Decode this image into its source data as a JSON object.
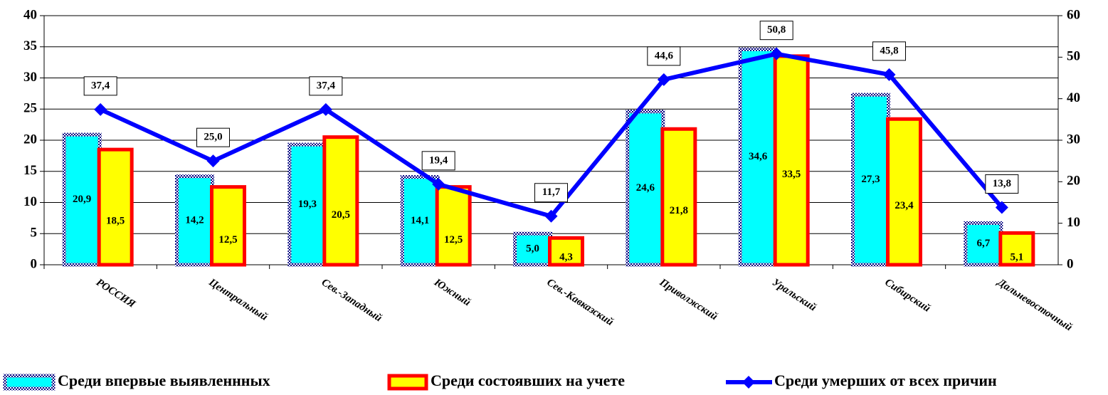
{
  "chart_data": {
    "type": "bar",
    "categories": [
      "РОССИЯ",
      "Центральный",
      "Сев.-Западный",
      "Южный",
      "Сев.-Кавказский",
      "Приволжский",
      "Уральский",
      "Сибирский",
      "Дальневосточный"
    ],
    "series": [
      {
        "name": "Среди впервые выявленнных",
        "color": "#00ffff",
        "type": "bar",
        "values": [
          20.9,
          14.2,
          19.3,
          14.1,
          5.0,
          24.6,
          34.6,
          27.3,
          6.7
        ],
        "value_labels": [
          "20,9",
          "14,2",
          "19,3",
          "14,1",
          "5,0",
          "24,6",
          "34,6",
          "27,3",
          "6,7"
        ]
      },
      {
        "name": "Среди состоявших на учете",
        "color": "#ffff00",
        "type": "bar",
        "values": [
          18.5,
          12.5,
          20.5,
          12.5,
          4.3,
          21.8,
          33.5,
          23.4,
          5.1
        ],
        "value_labels": [
          "18,5",
          "12,5",
          "20,5",
          "12,5",
          "4,3",
          "21,8",
          "33,5",
          "23,4",
          "5,1"
        ]
      },
      {
        "name": "Среди умерших от всех причин",
        "color": "#0000ff",
        "type": "line",
        "axis": "y2",
        "values": [
          37.4,
          25.0,
          37.4,
          19.4,
          11.7,
          44.6,
          50.8,
          45.8,
          13.8
        ],
        "value_labels": [
          "37,4",
          "25,0",
          "37,4",
          "19,4",
          "11,7",
          "44,6",
          "50,8",
          "45,8",
          "13,8"
        ]
      }
    ],
    "ylim": [
      0,
      40
    ],
    "yticks": [
      0,
      5,
      10,
      15,
      20,
      25,
      30,
      35,
      40
    ],
    "y2lim": [
      0,
      60
    ],
    "y2ticks": [
      0,
      10,
      20,
      30,
      40,
      50,
      60
    ],
    "grid": true,
    "legend": "bottom"
  }
}
